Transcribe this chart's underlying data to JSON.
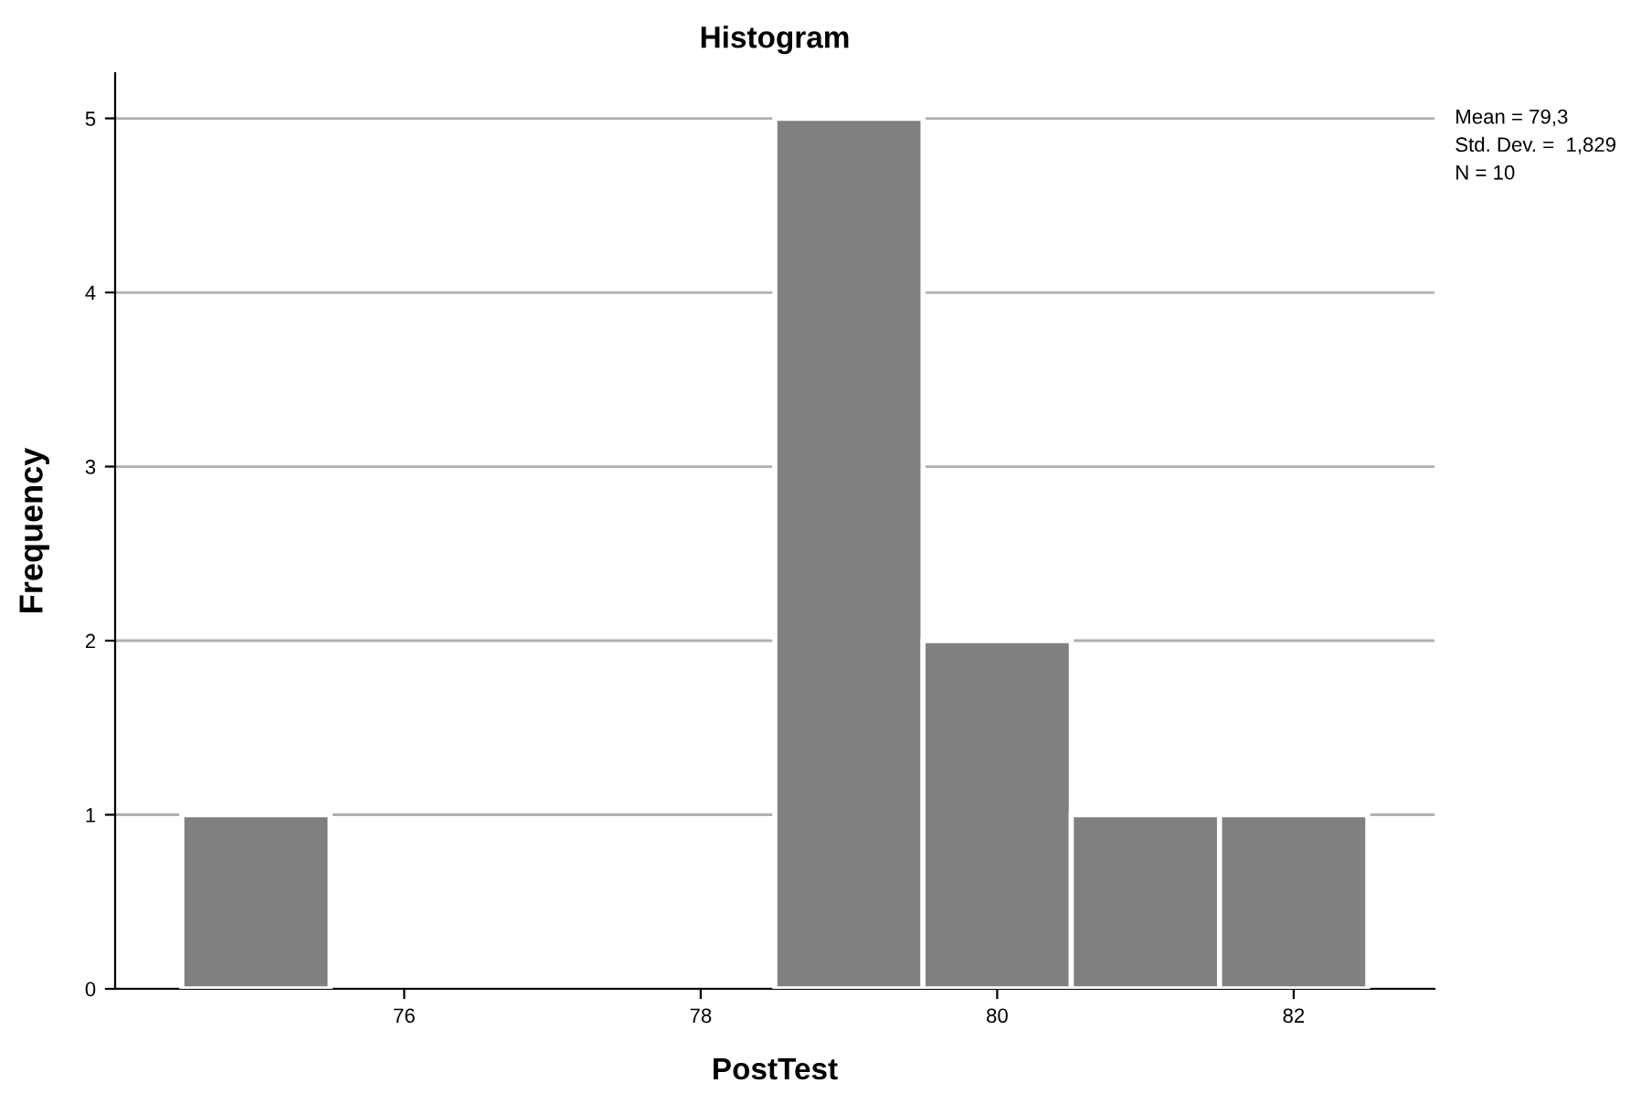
{
  "chart_data": {
    "type": "histogram",
    "title": "Histogram",
    "xlabel": "PostTest",
    "ylabel": "Frequency",
    "bins": [
      74.5,
      75.5,
      76.5,
      77.5,
      78.5,
      79.5,
      80.5,
      81.5,
      82.5
    ],
    "values": [
      1,
      0,
      0,
      0,
      5,
      2,
      1,
      1
    ],
    "color": "#808080",
    "xlim": [
      74.05,
      82.95
    ],
    "xticks": [
      76,
      78,
      80,
      82
    ],
    "ylim": [
      0,
      5.26
    ],
    "yticks": [
      0,
      1,
      2,
      3,
      4,
      5
    ],
    "grid": "y",
    "legend": false,
    "annotations": [
      "Mean = 79,3",
      "Std. Dev. =  1,829",
      "N = 10"
    ]
  }
}
